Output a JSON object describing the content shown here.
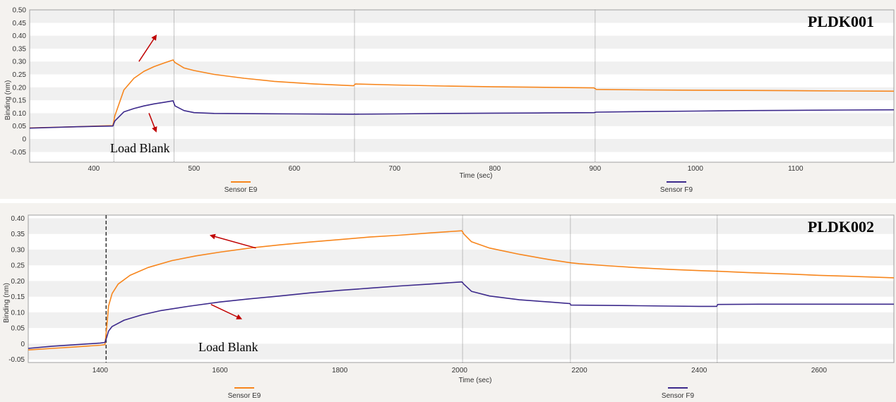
{
  "colors": {
    "sensor_e9": "#f7861d",
    "sensor_f9": "#3d2a8c",
    "arrow": "#c00000",
    "step_line": "#888888",
    "loading_line": "#333333",
    "band_light": "#ffffff",
    "band_dark": "#f0f0f0"
  },
  "chart_data": [
    {
      "type": "line",
      "title": "PLDK001",
      "xlabel": "Time (sec)",
      "ylabel": "Binding (nm)",
      "xlim": [
        336,
        1198
      ],
      "ylim": [
        -0.09,
        0.5
      ],
      "xticks": [
        400,
        500,
        600,
        700,
        800,
        900,
        1000,
        1100
      ],
      "xtick_labels": [
        "400",
        "500",
        "600",
        "700",
        "800",
        "900",
        "1000",
        "1100"
      ],
      "yticks": [
        0.5,
        0.45,
        0.4,
        0.35,
        0.3,
        0.25,
        0.2,
        0.15,
        0.1,
        0.05,
        0,
        -0.05
      ],
      "ytick_labels": [
        "0.50",
        "0.45",
        "0.40",
        "0.35",
        "0.30",
        "0.25",
        "0.20",
        "0.15",
        "0.10",
        "0.05",
        "0",
        "-0.05"
      ],
      "step_lines": [
        420,
        480,
        660,
        900
      ],
      "grid": "horizontal bands",
      "legend_placement": "bottom",
      "annotation": "Load Blank",
      "series": [
        {
          "name": "Sensor E9",
          "color_key": "sensor_e9",
          "x": [
            336,
            380,
            419,
            421,
            430,
            440,
            450,
            460,
            470,
            479,
            481,
            490,
            500,
            520,
            550,
            580,
            620,
            659,
            661,
            700,
            750,
            800,
            850,
            899,
            901,
            950,
            1000,
            1050,
            1100,
            1150,
            1198
          ],
          "y": [
            0.043,
            0.047,
            0.052,
            0.09,
            0.19,
            0.235,
            0.262,
            0.28,
            0.294,
            0.306,
            0.296,
            0.275,
            0.265,
            0.25,
            0.235,
            0.223,
            0.213,
            0.206,
            0.213,
            0.209,
            0.205,
            0.202,
            0.2,
            0.198,
            0.192,
            0.19,
            0.189,
            0.188,
            0.187,
            0.186,
            0.185
          ]
        },
        {
          "name": "Sensor F9",
          "color_key": "sensor_f9",
          "x": [
            336,
            380,
            419,
            421,
            430,
            440,
            450,
            460,
            470,
            479,
            481,
            490,
            500,
            520,
            560,
            600,
            659,
            661,
            700,
            750,
            800,
            850,
            899,
            901,
            950,
            1000,
            1050,
            1100,
            1150,
            1198
          ],
          "y": [
            0.042,
            0.047,
            0.05,
            0.07,
            0.105,
            0.118,
            0.128,
            0.136,
            0.142,
            0.148,
            0.128,
            0.11,
            0.102,
            0.099,
            0.098,
            0.097,
            0.096,
            0.096,
            0.097,
            0.099,
            0.1,
            0.101,
            0.102,
            0.104,
            0.106,
            0.108,
            0.11,
            0.111,
            0.112,
            0.113
          ]
        }
      ],
      "arrows": [
        {
          "from": [
            445,
            0.3
          ],
          "to": [
            462,
            0.4
          ]
        },
        {
          "from": [
            455,
            0.1
          ],
          "to": [
            462,
            0.03
          ]
        }
      ]
    },
    {
      "type": "line",
      "title": "PLDK002",
      "xlabel": "Time (sec)",
      "ylabel": "Binding (nm)",
      "xlim": [
        1280,
        2725
      ],
      "ylim": [
        -0.06,
        0.41
      ],
      "xticks": [
        1400,
        1600,
        1800,
        2000,
        2200,
        2400,
        2600
      ],
      "xtick_labels": [
        "1400",
        "1600",
        "1800",
        "2000",
        "2200",
        "2400",
        "2600"
      ],
      "yticks": [
        0.4,
        0.35,
        0.3,
        0.25,
        0.2,
        0.15,
        0.1,
        0.05,
        0,
        -0.05
      ],
      "ytick_labels": [
        "0.40",
        "0.35",
        "0.30",
        "0.25",
        "0.20",
        "0.15",
        "0.10",
        "0.05",
        "0",
        "-0.05"
      ],
      "step_lines": [
        2005,
        2185,
        2430
      ],
      "loading_line": 1410,
      "grid": "horizontal bands",
      "legend_placement": "bottom",
      "annotation": "Load Blank",
      "series": [
        {
          "name": "Sensor E9",
          "color_key": "sensor_e9",
          "x": [
            1280,
            1320,
            1360,
            1400,
            1408,
            1411,
            1414,
            1420,
            1430,
            1450,
            1480,
            1520,
            1560,
            1600,
            1650,
            1700,
            1750,
            1800,
            1850,
            1900,
            1950,
            2004,
            2007,
            2020,
            2050,
            2100,
            2150,
            2185,
            2200,
            2250,
            2300,
            2350,
            2400,
            2430,
            2480,
            2550,
            2600,
            2650,
            2725
          ],
          "y": [
            -0.02,
            -0.015,
            -0.01,
            -0.005,
            -0.003,
            0.05,
            0.12,
            0.16,
            0.19,
            0.218,
            0.243,
            0.265,
            0.28,
            0.292,
            0.305,
            0.315,
            0.324,
            0.332,
            0.34,
            0.346,
            0.353,
            0.36,
            0.35,
            0.325,
            0.305,
            0.285,
            0.268,
            0.258,
            0.255,
            0.248,
            0.242,
            0.237,
            0.233,
            0.231,
            0.227,
            0.222,
            0.218,
            0.215,
            0.21
          ]
        },
        {
          "name": "Sensor F9",
          "color_key": "sensor_f9",
          "x": [
            1280,
            1320,
            1360,
            1400,
            1408,
            1411,
            1414,
            1420,
            1440,
            1470,
            1500,
            1550,
            1600,
            1650,
            1700,
            1750,
            1800,
            1850,
            1900,
            1950,
            2004,
            2007,
            2020,
            2050,
            2100,
            2150,
            2184,
            2186,
            2250,
            2300,
            2350,
            2400,
            2429,
            2431,
            2500,
            2600,
            2725
          ],
          "y": [
            -0.015,
            -0.008,
            -0.003,
            0.002,
            0.004,
            0.02,
            0.04,
            0.055,
            0.075,
            0.092,
            0.105,
            0.12,
            0.133,
            0.143,
            0.152,
            0.162,
            0.17,
            0.177,
            0.184,
            0.19,
            0.197,
            0.19,
            0.167,
            0.152,
            0.14,
            0.133,
            0.128,
            0.123,
            0.122,
            0.121,
            0.12,
            0.119,
            0.119,
            0.125,
            0.126,
            0.126,
            0.126
          ]
        }
      ],
      "arrows": [
        {
          "from": [
            1660,
            0.305
          ],
          "to": [
            1585,
            0.345
          ]
        },
        {
          "from": [
            1585,
            0.125
          ],
          "to": [
            1635,
            0.08
          ]
        }
      ]
    }
  ]
}
